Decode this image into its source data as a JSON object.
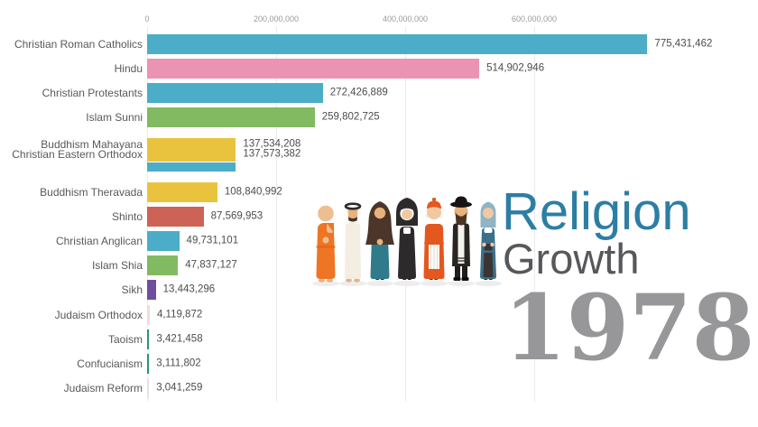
{
  "title": {
    "line1": "Religion",
    "line2": "Growth"
  },
  "year": "1978",
  "colors": {
    "title_accent": "#2d7ea3",
    "title_secondary": "#57585a",
    "year_gray": "#97979a",
    "blue": "#4badc7",
    "pink": "#ea93b2",
    "green": "#82ba62",
    "yellow": "#eac33e",
    "red": "#cd6356",
    "purple": "#6f4f9d",
    "dark_green": "#27996c",
    "pale_pink": "#f0dcda",
    "pale_gray": "#e3e3e3"
  },
  "figures": {
    "names": [
      "buddhist-monk",
      "muslim-man",
      "muslim-woman",
      "catholic-nun",
      "catholic-cardinal",
      "jewish-rabbi",
      "christian-woman"
    ]
  },
  "chart_data": {
    "type": "bar",
    "orientation": "horizontal",
    "title": "Religion Growth",
    "subtitle_year": "1978",
    "xlim": [
      0,
      800000000
    ],
    "grid": true,
    "x_ticks": [
      {
        "value": 0,
        "label": "0"
      },
      {
        "value": 200000000,
        "label": "200,000,000"
      },
      {
        "value": 400000000,
        "label": "400,000,000"
      },
      {
        "value": 600000000,
        "label": "600,000,000"
      }
    ],
    "rows": [
      {
        "label": "Christian Roman Catholics",
        "value": 775431462,
        "value_label": "775,431,462",
        "color": "#4badc7"
      },
      {
        "label": "Hindu",
        "value": 514902946,
        "value_label": "514,902,946",
        "color": "#ea93b2"
      },
      {
        "label": "Christian Protestants",
        "value": 272426889,
        "value_label": "272,426,889",
        "color": "#4badc7"
      },
      {
        "label": "Islam Sunni",
        "value": 259802725,
        "value_label": "259,802,725",
        "color": "#82ba62"
      },
      {
        "label": "Buddhism Mahayana",
        "value": 137534208,
        "value_label": "137,534,208",
        "color": "#eac33e"
      },
      {
        "label": "Christian Eastern Orthodox",
        "value": 137573382,
        "value_label": "137,573,382",
        "color": "#4badc7"
      },
      {
        "label": "Buddhism Theravada",
        "value": 108840992,
        "value_label": "108,840,992",
        "color": "#eac33e"
      },
      {
        "label": "Shinto",
        "value": 87569953,
        "value_label": "87,569,953",
        "color": "#cd6356"
      },
      {
        "label": "Christian Anglican",
        "value": 49731101,
        "value_label": "49,731,101",
        "color": "#4badc7"
      },
      {
        "label": "Islam Shia",
        "value": 47837127,
        "value_label": "47,837,127",
        "color": "#82ba62"
      },
      {
        "label": "Sikh",
        "value": 13443296,
        "value_label": "13,443,296",
        "color": "#6f4f9d"
      },
      {
        "label": "Judaism Orthodox",
        "value": 4119872,
        "value_label": "4,119,872",
        "color": "#f0dcda"
      },
      {
        "label": "Taoism",
        "value": 3421458,
        "value_label": "3,421,458",
        "color": "#27996c"
      },
      {
        "label": "Confucianism",
        "value": 3111802,
        "value_label": "3,111,802",
        "color": "#27996c"
      },
      {
        "label": "Judaism Reform",
        "value": 3041259,
        "value_label": "3,041,259",
        "color": "#e3e3e3"
      }
    ]
  }
}
